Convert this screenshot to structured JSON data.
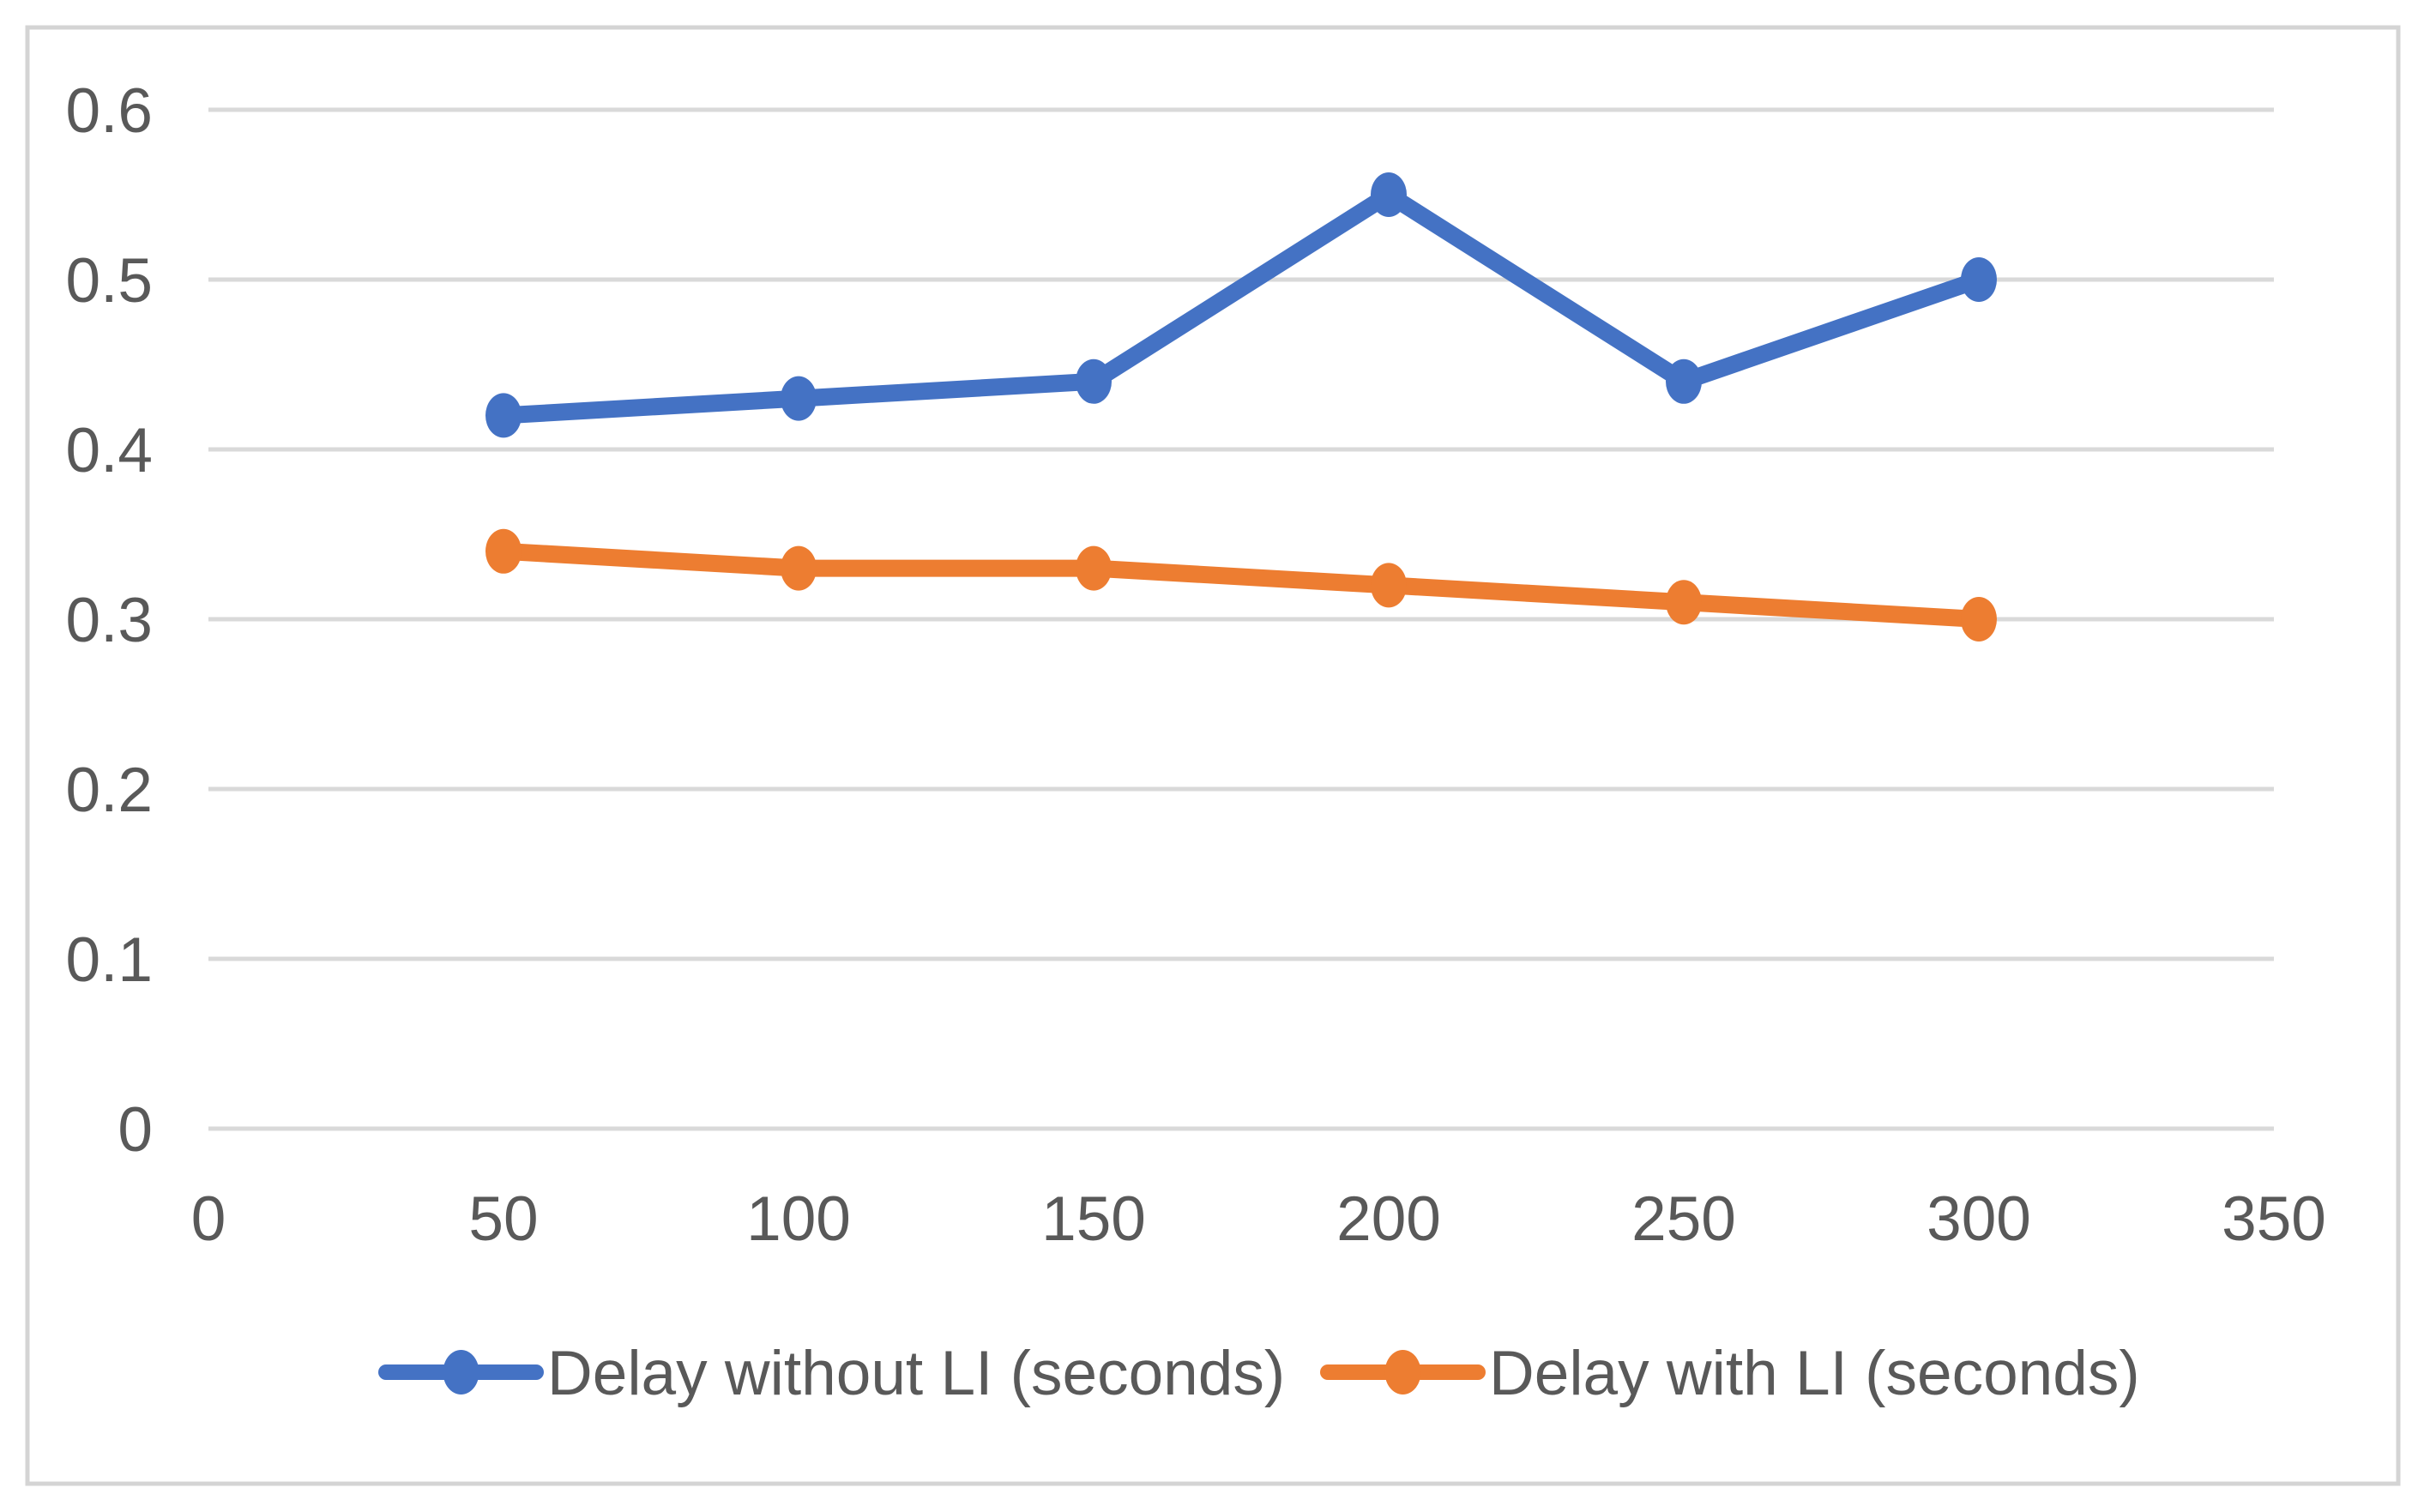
{
  "chart_data": {
    "type": "line",
    "title": "",
    "xlabel": "",
    "ylabel": "",
    "x": [
      50,
      100,
      150,
      200,
      250,
      300
    ],
    "series": [
      {
        "name": "Delay without LI (seconds)",
        "color": "#4472C4",
        "values": [
          0.42,
          0.43,
          0.44,
          0.55,
          0.44,
          0.5
        ]
      },
      {
        "name": "Delay with LI (seconds)",
        "color": "#ED7D31",
        "values": [
          0.34,
          0.33,
          0.33,
          0.32,
          0.31,
          0.3
        ]
      }
    ],
    "xlim": [
      0,
      350
    ],
    "ylim": [
      0,
      0.6
    ],
    "x_ticks": [
      0,
      50,
      100,
      150,
      200,
      250,
      300,
      350
    ],
    "y_ticks": [
      0,
      0.1,
      0.2,
      0.3,
      0.4,
      0.5,
      0.6
    ],
    "x_tick_labels": [
      "0",
      "50",
      "100",
      "150",
      "200",
      "250",
      "300",
      "350"
    ],
    "y_tick_labels": [
      "0",
      "0.1",
      "0.2",
      "0.3",
      "0.4",
      "0.5",
      "0.6"
    ],
    "grid": "horizontal",
    "legend_position": "bottom",
    "marker": "circle"
  },
  "styles": {
    "background": "#FFFFFF",
    "grid_color": "#D9D9D9",
    "border_color": "#D4D4D4",
    "tick_label_color": "#595959",
    "legend_text_color": "#595959"
  }
}
